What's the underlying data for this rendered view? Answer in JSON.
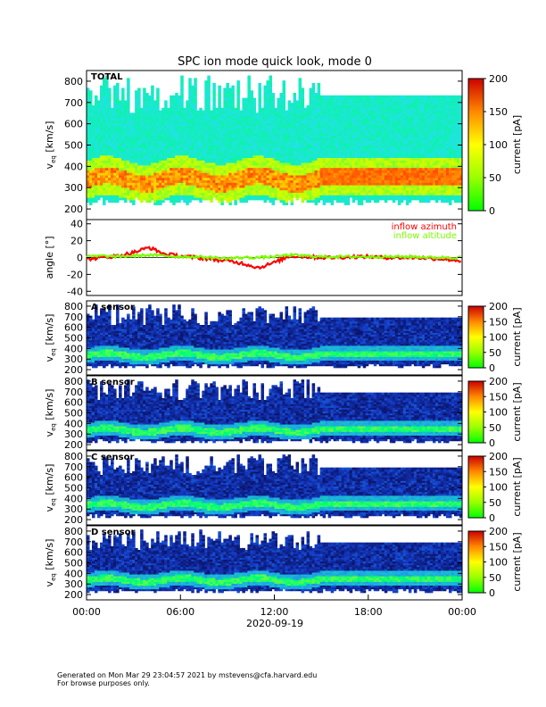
{
  "title": "SPC ion mode quick look, mode 0",
  "date_label": "2020-09-19",
  "x_ticks": [
    "00:00",
    "06:00",
    "12:00",
    "18:00",
    "00:00"
  ],
  "colorbar_label": "current [pA]",
  "footer": {
    "line1": "Generated on Mon Mar 29 23:04:57 2021 by mstevens@cfa.harvard.edu",
    "line2": "For browse purposes only."
  },
  "chart_data": [
    {
      "type": "heatmap",
      "panel": "TOTAL",
      "label": "TOTAL",
      "ylabel": "v",
      "ylabel_sub": "eq",
      "ylabel_unit": "[km/s]",
      "ylim": [
        150,
        850
      ],
      "yticks": [
        200,
        300,
        400,
        500,
        600,
        700,
        800
      ],
      "colorbar_ticks": [
        0,
        50,
        100,
        150,
        200
      ],
      "colorbar_range": [
        0,
        200
      ],
      "colormap": "green-yellow-red"
    },
    {
      "type": "line",
      "panel": "angle",
      "ylabel": "angle [°]",
      "ylim": [
        -45,
        45
      ],
      "yticks": [
        -40,
        -20,
        0,
        20,
        40
      ],
      "series": [
        {
          "name": "inflow azimuth",
          "color": "#ff0000",
          "x": [
            0,
            1,
            2,
            3,
            4,
            5,
            6,
            7,
            8,
            9,
            10,
            11,
            12,
            13,
            14,
            15,
            16,
            17,
            18,
            19,
            20,
            21,
            22,
            23,
            24
          ],
          "y": [
            -2,
            0,
            2,
            6,
            12,
            4,
            2,
            0,
            -2,
            -4,
            -7,
            -12,
            -6,
            2,
            1,
            0,
            0,
            1,
            1,
            0,
            0,
            0,
            -1,
            -2,
            -4
          ]
        },
        {
          "name": "inflow altitude",
          "color": "#7cfc00",
          "x": [
            0,
            1,
            2,
            3,
            4,
            5,
            6,
            7,
            8,
            9,
            10,
            11,
            12,
            13,
            14,
            15,
            16,
            17,
            18,
            19,
            20,
            21,
            22,
            23,
            24
          ],
          "y": [
            1,
            2,
            1,
            2,
            3,
            2,
            1,
            1,
            0,
            -1,
            0,
            0,
            1,
            3,
            2,
            1,
            1,
            1,
            1,
            1,
            1,
            1,
            0,
            0,
            0
          ]
        }
      ]
    },
    {
      "type": "heatmap",
      "panel": "A sensor",
      "label": "A sensor",
      "ylabel": "v",
      "ylabel_sub": "eq",
      "ylabel_unit": "[km/s]",
      "ylim": [
        150,
        850
      ],
      "yticks": [
        200,
        300,
        400,
        500,
        600,
        700,
        800
      ],
      "colorbar_ticks": [
        0,
        50,
        100,
        150,
        200
      ],
      "colorbar_range": [
        0,
        200
      ],
      "colormap": "dark-blue-green-yellow-red"
    },
    {
      "type": "heatmap",
      "panel": "B sensor",
      "label": "B sensor",
      "ylabel": "v",
      "ylabel_sub": "eq",
      "ylabel_unit": "[km/s]",
      "ylim": [
        150,
        850
      ],
      "yticks": [
        200,
        300,
        400,
        500,
        600,
        700,
        800
      ],
      "colorbar_ticks": [
        0,
        50,
        100,
        150,
        200
      ],
      "colorbar_range": [
        0,
        200
      ],
      "colormap": "dark-blue-green-yellow-red"
    },
    {
      "type": "heatmap",
      "panel": "C sensor",
      "label": "C sensor",
      "ylabel": "v",
      "ylabel_sub": "eq",
      "ylabel_unit": "[km/s]",
      "ylim": [
        150,
        850
      ],
      "yticks": [
        200,
        300,
        400,
        500,
        600,
        700,
        800
      ],
      "colorbar_ticks": [
        0,
        50,
        100,
        150,
        200
      ],
      "colorbar_range": [
        0,
        200
      ],
      "colormap": "dark-blue-green-yellow-red"
    },
    {
      "type": "heatmap",
      "panel": "D sensor",
      "label": "D sensor",
      "ylabel": "v",
      "ylabel_sub": "eq",
      "ylabel_unit": "[km/s]",
      "ylim": [
        150,
        850
      ],
      "yticks": [
        200,
        300,
        400,
        500,
        600,
        700,
        800
      ],
      "colorbar_ticks": [
        0,
        50,
        100,
        150,
        200
      ],
      "colorbar_range": [
        0,
        200
      ],
      "colormap": "dark-blue-green-yellow-red"
    }
  ]
}
